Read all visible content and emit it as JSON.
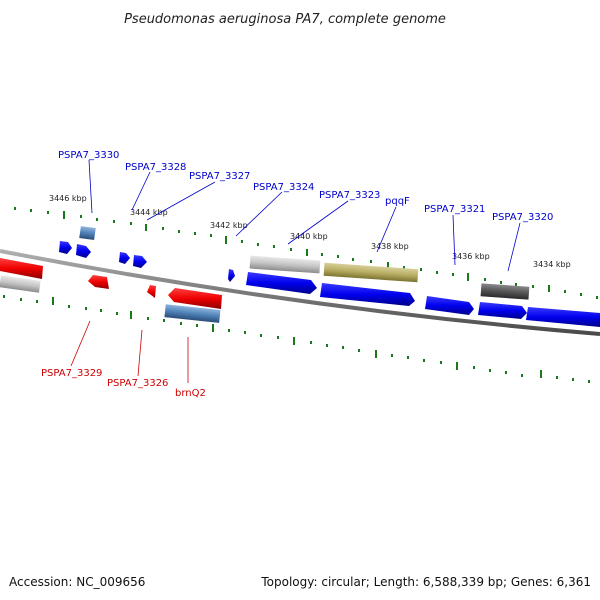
{
  "title": "Pseudomonas aeruginosa PA7, complete genome",
  "footer": {
    "accession": "Accession: NC_009656",
    "topology": "Topology: circular; Length: 6,588,339 bp; Genes: 6,361"
  },
  "colors": {
    "forward_label": "#0000cc",
    "reverse_label": "#cc0000",
    "backbone": "#888888",
    "ticks": "#1a7a1a"
  },
  "scale_labels": [
    "3446 kbp",
    "3444 kbp",
    "3442 kbp",
    "3440 kbp",
    "3438 kbp",
    "3436 kbp",
    "3434 kbp"
  ],
  "top_labels": [
    "PSPA7_3330",
    "PSPA7_3328",
    "PSPA7_3327",
    "PSPA7_3324",
    "PSPA7_3323",
    "pqqF",
    "PSPA7_3321",
    "PSPA7_3320"
  ],
  "bottom_labels": [
    "PSPA7_3329",
    "PSPA7_3326",
    "brnQ2"
  ]
}
